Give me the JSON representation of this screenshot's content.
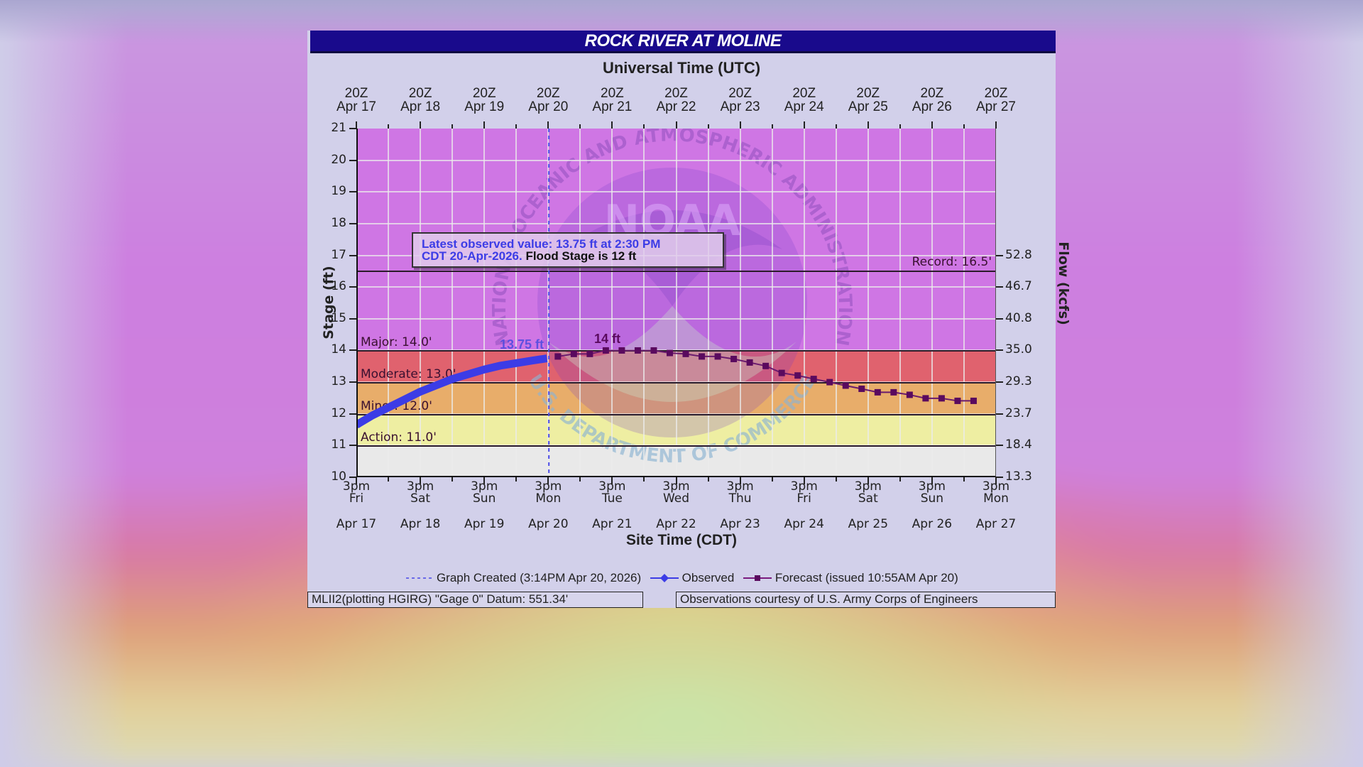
{
  "window": {
    "title": "ROCK RIVER AT MOLINE"
  },
  "header": {
    "top_axis_title": "Universal Time (UTC)",
    "bottom_axis_title": "Site Time (CDT)",
    "left_axis_title": "Stage (ft)",
    "right_axis_title": "Flow (kcfs)"
  },
  "infobox": {
    "line1": "Latest observed value: 13.75 ft at 2:30 PM",
    "line2_blue": "CDT 20-Apr-2026.",
    "line2_black": "Flood Stage is 12 ft"
  },
  "top_ticks": [
    {
      "l1": "20Z",
      "l2": "Apr 17"
    },
    {
      "l1": "20Z",
      "l2": "Apr 18"
    },
    {
      "l1": "20Z",
      "l2": "Apr 19"
    },
    {
      "l1": "20Z",
      "l2": "Apr 20"
    },
    {
      "l1": "20Z",
      "l2": "Apr 21"
    },
    {
      "l1": "20Z",
      "l2": "Apr 22"
    },
    {
      "l1": "20Z",
      "l2": "Apr 23"
    },
    {
      "l1": "20Z",
      "l2": "Apr 24"
    },
    {
      "l1": "20Z",
      "l2": "Apr 25"
    },
    {
      "l1": "20Z",
      "l2": "Apr 26"
    },
    {
      "l1": "20Z",
      "l2": "Apr 27"
    }
  ],
  "bottom_ticks": [
    {
      "time": "3pm",
      "day": "Fri",
      "date": "Apr 17"
    },
    {
      "time": "3pm",
      "day": "Sat",
      "date": "Apr 18"
    },
    {
      "time": "3pm",
      "day": "Sun",
      "date": "Apr 19"
    },
    {
      "time": "3pm",
      "day": "Mon",
      "date": "Apr 20"
    },
    {
      "time": "3pm",
      "day": "Tue",
      "date": "Apr 21"
    },
    {
      "time": "3pm",
      "day": "Wed",
      "date": "Apr 22"
    },
    {
      "time": "3pm",
      "day": "Thu",
      "date": "Apr 23"
    },
    {
      "time": "3pm",
      "day": "Fri",
      "date": "Apr 24"
    },
    {
      "time": "3pm",
      "day": "Sat",
      "date": "Apr 25"
    },
    {
      "time": "3pm",
      "day": "Sun",
      "date": "Apr 26"
    },
    {
      "time": "3pm",
      "day": "Mon",
      "date": "Apr 27"
    }
  ],
  "left_ticks": [
    "21",
    "20",
    "19",
    "18",
    "17",
    "16",
    "15",
    "14",
    "13",
    "12",
    "11",
    "10"
  ],
  "right_ticks": [
    {
      "label": "52.8",
      "stage": 17
    },
    {
      "label": "46.7",
      "stage": 16
    },
    {
      "label": "40.8",
      "stage": 15
    },
    {
      "label": "35.0",
      "stage": 14
    },
    {
      "label": "29.3",
      "stage": 13
    },
    {
      "label": "23.7",
      "stage": 12
    },
    {
      "label": "18.4",
      "stage": 11
    },
    {
      "label": "13.3",
      "stage": 10
    }
  ],
  "thresholds": {
    "record": "Record: 16.5'",
    "major": "Major: 14.0'",
    "moderate": "Moderate: 13.0'",
    "minor": "Minor: 12.0'",
    "action": "Action: 11.0'"
  },
  "annotations": {
    "observed_label": "13.75 ft",
    "forecast_peak_label": "14 ft"
  },
  "legend": {
    "graph_created": "Graph Created (3:14PM Apr 20, 2026)",
    "observed": "Observed",
    "forecast": "Forecast (issued 10:55AM Apr 20)"
  },
  "footer": {
    "left": "MLII2(plotting HGIRG) \"Gage 0\" Datum: 551.34'",
    "right": "Observations courtesy of U.S. Army Corps of Engineers"
  },
  "watermark": {
    "center": "NOAA",
    "ring_top": "NATIONAL OCEANIC AND ATMOSPHERIC ADMINISTRATION",
    "ring_bottom": "U.S. DEPARTMENT OF COMMERCE"
  },
  "colors": {
    "title_bar": "#190a8c",
    "band_above_major": "#cf76e4",
    "band_major": "#e0626e",
    "band_moderate": "#e8ad6a",
    "band_minor": "#eeeea2",
    "band_action": "#e9e9e9",
    "observed": "#3c3ce6",
    "forecast": "#5a0a5e"
  },
  "chart_data": {
    "type": "line",
    "title": "ROCK RIVER AT MOLINE",
    "xlabel": "Site Time (CDT)",
    "xlabel_top": "Universal Time (UTC)",
    "ylabel": "Stage (ft)",
    "ylabel_right": "Flow (kcfs)",
    "ylim": [
      10,
      21
    ],
    "xlim": [
      "Apr 17 3pm",
      "Apr 27 3pm"
    ],
    "grid": true,
    "legend_position": "bottom",
    "thresholds": [
      {
        "name": "Record",
        "value": 16.5
      },
      {
        "name": "Major",
        "value": 14.0
      },
      {
        "name": "Moderate",
        "value": 13.0
      },
      {
        "name": "Minor",
        "value": 12.0
      },
      {
        "name": "Action",
        "value": 11.0
      }
    ],
    "flood_stage": 12,
    "graph_created": "3:14PM Apr 20, 2026",
    "series": [
      {
        "name": "Observed",
        "x_days_from_apr17_3pm": [
          0.0,
          0.25,
          0.5,
          0.75,
          1.0,
          1.25,
          1.5,
          1.75,
          2.0,
          2.25,
          2.5,
          2.75,
          2.98
        ],
        "values": [
          11.65,
          11.95,
          12.2,
          12.45,
          12.7,
          12.9,
          13.1,
          13.25,
          13.4,
          13.52,
          13.6,
          13.68,
          13.75
        ]
      },
      {
        "name": "Forecast (issued 10:55AM Apr 20)",
        "x_days_from_apr17_3pm": [
          3.15,
          3.4,
          3.65,
          3.9,
          4.15,
          4.4,
          4.65,
          4.9,
          5.15,
          5.4,
          5.65,
          5.9,
          6.15,
          6.4,
          6.65,
          6.9,
          7.15,
          7.4,
          7.65,
          7.9,
          8.15,
          8.4,
          8.65,
          8.9,
          9.15,
          9.4,
          9.65
        ],
        "values": [
          13.81,
          13.89,
          13.89,
          14.0,
          14.0,
          14.0,
          14.0,
          13.92,
          13.89,
          13.81,
          13.81,
          13.73,
          13.62,
          13.51,
          13.29,
          13.21,
          13.1,
          13.0,
          12.89,
          12.79,
          12.68,
          12.68,
          12.6,
          12.49,
          12.49,
          12.41,
          12.41
        ]
      }
    ],
    "flow_axis": {
      "stage": [
        10,
        11,
        12,
        13,
        14,
        15,
        16,
        17
      ],
      "kcfs": [
        13.3,
        18.4,
        23.7,
        29.3,
        35.0,
        40.8,
        46.7,
        52.8
      ]
    }
  }
}
